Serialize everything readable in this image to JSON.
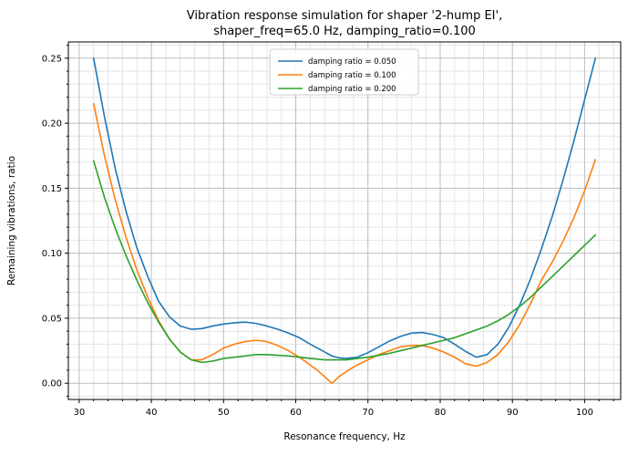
{
  "title": {
    "line1": "Vibration response simulation for shaper '2-hump EI',",
    "line2": "shaper_freq=65.0 Hz, damping_ratio=0.100"
  },
  "axes": {
    "xlabel": "Resonance frequency, Hz",
    "ylabel": "Remaining vibrations, ratio",
    "xlim": [
      28.5,
      105
    ],
    "ylim": [
      -0.0125,
      0.2625
    ],
    "x_major_ticks": [
      30,
      40,
      50,
      60,
      70,
      80,
      90,
      100
    ],
    "y_major_ticks": [
      0,
      0.05,
      0.1,
      0.15,
      0.2,
      0.25
    ],
    "y_tick_labels": [
      "0.00",
      "0.05",
      "0.10",
      "0.15",
      "0.20",
      "0.25"
    ],
    "x_minor_step": 2,
    "y_minor_step": 0.01,
    "grid": "both"
  },
  "legend": {
    "position": "upper center",
    "entries": [
      {
        "label": "damping ratio = 0.050",
        "color": "#1f77b4"
      },
      {
        "label": "damping ratio = 0.100",
        "color": "#ff7f0e"
      },
      {
        "label": "damping ratio = 0.200",
        "color": "#2ca02c"
      }
    ]
  },
  "chart_data": {
    "type": "line",
    "title": "Vibration response simulation for shaper '2-hump EI', shaper_freq=65.0 Hz, damping_ratio=0.100",
    "xlabel": "Resonance frequency, Hz",
    "ylabel": "Remaining vibrations, ratio",
    "xlim": [
      28.5,
      105
    ],
    "ylim": [
      -0.0125,
      0.2625
    ],
    "grid": "both",
    "legend_position": "upper center",
    "x": [
      32,
      33.5,
      35,
      36.5,
      38,
      39.5,
      41,
      42.5,
      44,
      45.5,
      47,
      48.5,
      50,
      51.5,
      53,
      54.5,
      56,
      57.5,
      59,
      60.5,
      62,
      63,
      64,
      65,
      66,
      67,
      68.5,
      70,
      71.5,
      73,
      74.5,
      76,
      77.5,
      79,
      80.5,
      82,
      83.5,
      85,
      86.5,
      88,
      89.5,
      91,
      92.5,
      94,
      95.5,
      97,
      98.5,
      100,
      101.5
    ],
    "series": [
      {
        "name": "damping ratio = 0.050",
        "color": "#1f77b4",
        "values": [
          0.25,
          0.205,
          0.165,
          0.132,
          0.104,
          0.082,
          0.063,
          0.051,
          0.044,
          0.0415,
          0.042,
          0.044,
          0.0455,
          0.0465,
          0.047,
          0.046,
          0.044,
          0.0415,
          0.0385,
          0.035,
          0.03,
          0.027,
          0.024,
          0.021,
          0.0195,
          0.019,
          0.02,
          0.0235,
          0.028,
          0.0325,
          0.036,
          0.0385,
          0.039,
          0.0375,
          0.035,
          0.03,
          0.0245,
          0.02,
          0.022,
          0.03,
          0.043,
          0.06,
          0.08,
          0.103,
          0.128,
          0.156,
          0.186,
          0.218,
          0.25
        ]
      },
      {
        "name": "damping ratio = 0.100",
        "color": "#ff7f0e",
        "values": [
          0.215,
          0.175,
          0.141,
          0.112,
          0.087,
          0.066,
          0.048,
          0.034,
          0.024,
          0.018,
          0.018,
          0.022,
          0.027,
          0.03,
          0.032,
          0.033,
          0.032,
          0.029,
          0.025,
          0.02,
          0.014,
          0.01,
          0.005,
          0.0,
          0.005,
          0.009,
          0.014,
          0.018,
          0.022,
          0.025,
          0.028,
          0.029,
          0.029,
          0.027,
          0.024,
          0.02,
          0.015,
          0.013,
          0.016,
          0.022,
          0.032,
          0.045,
          0.061,
          0.079,
          0.093,
          0.109,
          0.127,
          0.148,
          0.172
        ]
      },
      {
        "name": "damping ratio = 0.200",
        "color": "#2ca02c",
        "values": [
          0.171,
          0.143,
          0.119,
          0.098,
          0.079,
          0.062,
          0.047,
          0.034,
          0.024,
          0.018,
          0.016,
          0.017,
          0.019,
          0.02,
          0.021,
          0.022,
          0.022,
          0.0215,
          0.021,
          0.02,
          0.019,
          0.0185,
          0.018,
          0.018,
          0.018,
          0.018,
          0.019,
          0.02,
          0.0215,
          0.023,
          0.025,
          0.027,
          0.029,
          0.031,
          0.033,
          0.035,
          0.038,
          0.041,
          0.044,
          0.048,
          0.053,
          0.059,
          0.066,
          0.074,
          0.082,
          0.09,
          0.098,
          0.106,
          0.114
        ]
      }
    ]
  }
}
